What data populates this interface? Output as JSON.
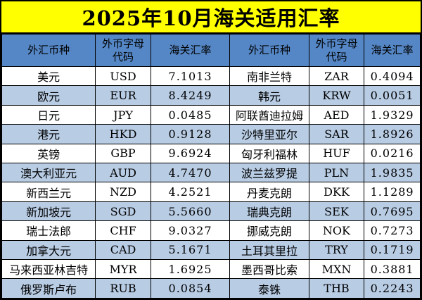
{
  "title": "2025年10月海关适用汇率",
  "colors": {
    "title_bg": "#FFFF00",
    "header_bg": "#5587C6",
    "band_bg": "#B8CCE4",
    "border": "#000000",
    "text": "#000000"
  },
  "table": {
    "headers": [
      "外汇币种",
      "外币字母代码",
      "海关汇率",
      "外汇币种",
      "外币字母代码",
      "海关汇率"
    ],
    "rows": [
      [
        "美元",
        "USD",
        "7.1013",
        "南非兰特",
        "ZAR",
        "0.4094"
      ],
      [
        "欧元",
        "EUR",
        "8.4249",
        "韩元",
        "KRW",
        "0.0051"
      ],
      [
        "日元",
        "JPY",
        "0.0485",
        "阿联酋迪拉姆",
        "AED",
        "1.9329"
      ],
      [
        "港元",
        "HKD",
        "0.9128",
        "沙特里亚尔",
        "SAR",
        "1.8926"
      ],
      [
        "英镑",
        "GBP",
        "9.6924",
        "匈牙利福林",
        "HUF",
        "0.0216"
      ],
      [
        "澳大利亚元",
        "AUD",
        "4.7470",
        "波兰兹罗提",
        "PLN",
        "1.9835"
      ],
      [
        "新西兰元",
        "NZD",
        "4.2521",
        "丹麦克朗",
        "DKK",
        "1.1289"
      ],
      [
        "新加坡元",
        "SGD",
        "5.5660",
        "瑞典克朗",
        "SEK",
        "0.7695"
      ],
      [
        "瑞士法郎",
        "CHF",
        "9.0327",
        "挪威克朗",
        "NOK",
        "0.7273"
      ],
      [
        "加拿大元",
        "CAD",
        "5.1671",
        "土耳其里拉",
        "TRY",
        "0.1719"
      ],
      [
        "马来西亚林吉特",
        "MYR",
        "1.6925",
        "墨西哥比索",
        "MXN",
        "0.3881"
      ],
      [
        "俄罗斯卢布",
        "RUB",
        "0.0854",
        "泰铢",
        "THB",
        "0.2243"
      ]
    ]
  }
}
